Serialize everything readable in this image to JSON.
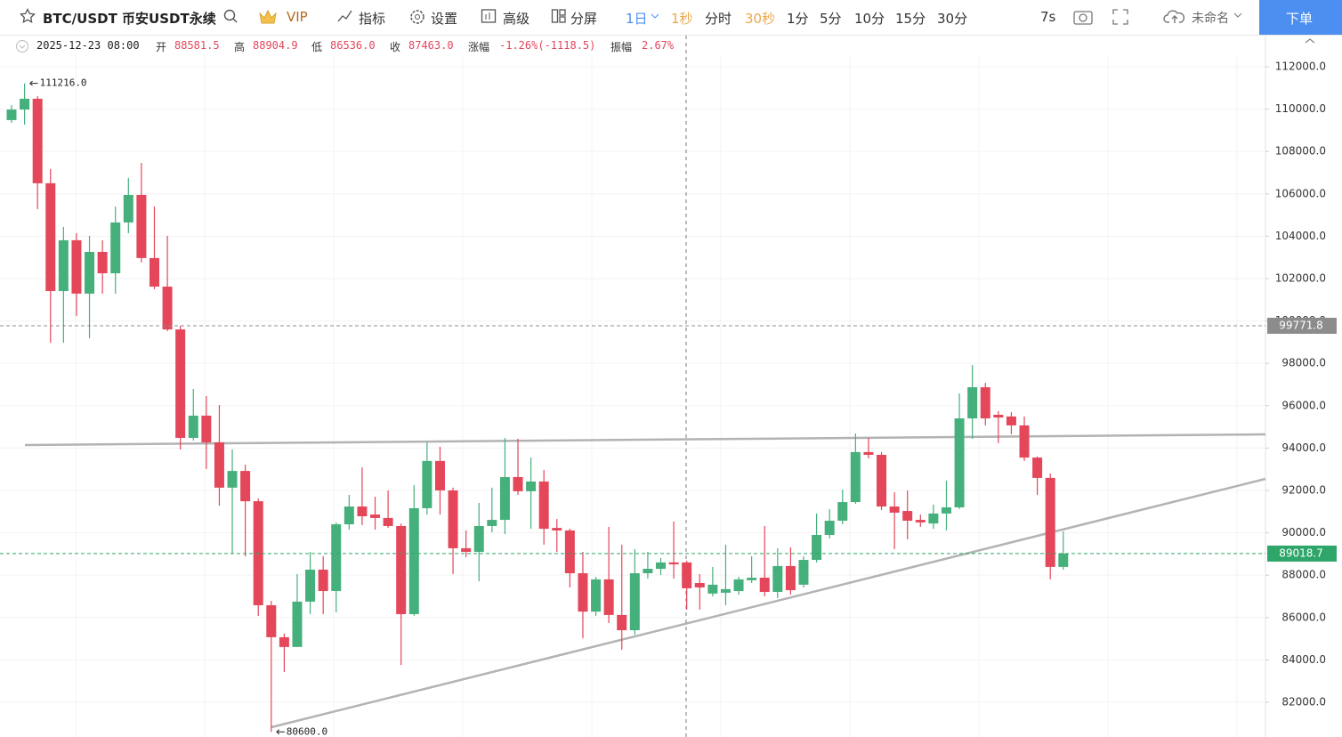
{
  "toolbar": {
    "symbol": "BTC/USDT 币安USDT永续",
    "vip": "VIP",
    "tools": [
      "指标",
      "设置",
      "高级",
      "分屏"
    ],
    "intervals": [
      "1日",
      "1秒",
      "分时",
      "30秒",
      "1分",
      "5分",
      "10分",
      "15分",
      "30分"
    ],
    "refresh": "7s",
    "layout_name": "未命名",
    "order_button": "下单"
  },
  "info_bar": {
    "time": "2025-12-23 08:00",
    "fields": [
      {
        "label": "开",
        "value": "88581.5"
      },
      {
        "label": "高",
        "value": "88904.9"
      },
      {
        "label": "低",
        "value": "86536.0"
      },
      {
        "label": "收",
        "value": "87463.0"
      },
      {
        "label": "涨幅",
        "value": "-1.26%(-1118.5)"
      },
      {
        "label": "振幅",
        "value": "2.67%"
      }
    ]
  },
  "chart_data": {
    "type": "candlestick",
    "up_color": "#46b07c",
    "down_color": "#e4465a",
    "open": [
      109480,
      109980,
      110490,
      106500,
      101410,
      103810,
      101290,
      103260,
      102250,
      104650,
      105950,
      102970,
      101620,
      99600,
      94480,
      95530,
      94270,
      92130,
      92920,
      91490,
      86580,
      85070,
      84610,
      86750,
      88260,
      87250,
      90400,
      91240,
      90860,
      90700,
      90320,
      86160,
      91160,
      93390,
      92000,
      89270,
      89100,
      90320,
      90610,
      92630,
      91960,
      92420,
      90230,
      90110,
      88090,
      86280,
      87800,
      86120,
      85400,
      88090,
      88300,
      88600,
      88600,
      87630,
      87130,
      87170,
      87250,
      87760,
      87880,
      87210,
      88430,
      87550,
      88720,
      89900,
      90570,
      91450,
      93810,
      93680,
      91240,
      91030,
      90610,
      90440,
      90910,
      91200,
      95400,
      96870,
      95570,
      95490,
      95070,
      93550,
      92590,
      88390
    ],
    "high": [
      110190,
      111216,
      110610,
      107170,
      104440,
      104140,
      104020,
      103810,
      105400,
      106750,
      107460,
      105400,
      104020,
      99770,
      96790,
      96450,
      96030,
      93930,
      93220,
      91620,
      86790,
      85240,
      88050,
      89100,
      88890,
      90490,
      91790,
      93090,
      91700,
      92000,
      90440,
      92250,
      94270,
      94060,
      92130,
      90110,
      91410,
      92130,
      94480,
      94440,
      93550,
      92970,
      90650,
      90190,
      89100,
      87920,
      90280,
      89440,
      89230,
      89100,
      88810,
      90530,
      88680,
      88050,
      88390,
      89440,
      87920,
      88890,
      90320,
      89270,
      89310,
      88890,
      90910,
      91120,
      92040,
      94690,
      94480,
      93810,
      91910,
      92000,
      90860,
      91330,
      92460,
      96580,
      97920,
      97080,
      95740,
      95700,
      95490,
      93600,
      92800,
      90070
    ],
    "low": [
      109350,
      109270,
      105280,
      98970,
      98970,
      100230,
      99180,
      101290,
      101290,
      104140,
      102760,
      101500,
      99520,
      93930,
      94350,
      93010,
      91280,
      89020,
      88890,
      86080,
      80600,
      83430,
      84610,
      86160,
      86160,
      86240,
      90150,
      90360,
      90150,
      90230,
      83760,
      86080,
      90860,
      90860,
      88050,
      88850,
      87710,
      90020,
      89940,
      91790,
      90190,
      89440,
      89100,
      87420,
      85020,
      86080,
      85740,
      84480,
      85190,
      87840,
      88010,
      87840,
      86370,
      86370,
      87000,
      86580,
      87080,
      87630,
      87000,
      86920,
      87080,
      87420,
      88600,
      89730,
      90400,
      91370,
      93510,
      91070,
      89230,
      89690,
      90280,
      90190,
      90110,
      91120,
      94440,
      95070,
      94230,
      94650,
      93390,
      91790,
      87800,
      88260
    ],
    "close": [
      109980,
      110490,
      106500,
      101410,
      103810,
      101290,
      103260,
      102250,
      104650,
      105950,
      102970,
      101620,
      99600,
      94480,
      95530,
      94270,
      92130,
      92920,
      91490,
      86580,
      85070,
      84610,
      86750,
      88260,
      87250,
      90400,
      91240,
      90780,
      90700,
      90320,
      86160,
      91160,
      93390,
      92000,
      89270,
      89100,
      90320,
      90610,
      92630,
      91960,
      92420,
      90190,
      90110,
      88090,
      86280,
      87800,
      86120,
      85400,
      88090,
      88300,
      88600,
      88510,
      87380,
      87420,
      87550,
      87340,
      87800,
      87880,
      87210,
      88430,
      87290,
      88720,
      89900,
      90570,
      91450,
      93810,
      93680,
      91240,
      90950,
      90570,
      90490,
      90910,
      91200,
      95400,
      96870,
      95400,
      95440,
      95070,
      93550,
      92590,
      88390,
      89018.7
    ],
    "ylim": [
      80360,
      113470
    ],
    "yticks": [
      {
        "value": 82000,
        "label": "82000.0"
      },
      {
        "value": 84000,
        "label": "84000.0"
      },
      {
        "value": 86000,
        "label": "86000.0"
      },
      {
        "value": 88000,
        "label": "88000.0"
      },
      {
        "value": 90000,
        "label": "90000.0"
      },
      {
        "value": 92000,
        "label": "92000.0"
      },
      {
        "value": 94000,
        "label": "94000.0"
      },
      {
        "value": 96000,
        "label": "96000.0"
      },
      {
        "value": 98000,
        "label": "98000.0"
      },
      {
        "value": 100000,
        "label": "100000.0"
      },
      {
        "value": 102000,
        "label": "102000.0"
      },
      {
        "value": 104000,
        "label": "104000.0"
      },
      {
        "value": 106000,
        "label": "106000.0"
      },
      {
        "value": 108000,
        "label": "108000.0"
      },
      {
        "value": 110000,
        "label": "110000.0"
      },
      {
        "value": 112000,
        "label": "112000.0"
      }
    ],
    "extremes": [
      {
        "value": 111216,
        "label": "111216.0"
      },
      {
        "value": 80600,
        "label": "80600.0"
      }
    ],
    "price_lines": [
      {
        "value": 99771.8,
        "label": "99771.8",
        "color": "#8c8c8c"
      },
      {
        "value": 89018.7,
        "label": "89018.7",
        "color": "#2ea66a"
      }
    ]
  }
}
